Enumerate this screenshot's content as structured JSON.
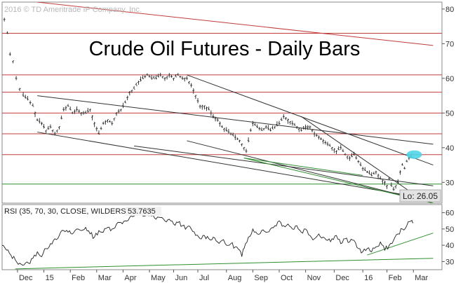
{
  "copyright": "2016 © TD Ameritrade IP Company, Inc.",
  "colors": {
    "price": "#222222",
    "resistance": "#c23b3b",
    "support": "#2f8f2f",
    "trendline": "#333333",
    "highlight": "#4fd6e8",
    "lo_box": "#e3e3e3"
  },
  "chart_data": [
    {
      "type": "line",
      "title": "Crude Oil Futures - Daily Bars",
      "ylim": [
        24,
        82
      ],
      "yticks": [
        30,
        40,
        50,
        60,
        70,
        80
      ],
      "ytick_labels": [
        "30",
        "40",
        "50",
        "60",
        "70",
        "80"
      ],
      "xtick_labels": [
        "Dec",
        "15",
        "Feb",
        "Mar",
        "Apr",
        "May",
        "Jun",
        "Jul",
        "Aug",
        "Sep",
        "Oct",
        "Nov",
        "Dec",
        "16",
        "Feb",
        "Mar"
      ],
      "xtick_pos": [
        0.035,
        0.095,
        0.155,
        0.215,
        0.275,
        0.335,
        0.39,
        0.445,
        0.51,
        0.57,
        0.63,
        0.69,
        0.755,
        0.82,
        0.875,
        0.935
      ],
      "x_range": [
        0,
        1
      ],
      "price": [
        [
          0.005,
          77
        ],
        [
          0.012,
          73
        ],
        [
          0.018,
          67
        ],
        [
          0.025,
          65
        ],
        [
          0.032,
          60
        ],
        [
          0.04,
          57
        ],
        [
          0.048,
          55
        ],
        [
          0.058,
          54
        ],
        [
          0.07,
          52
        ],
        [
          0.08,
          48
        ],
        [
          0.09,
          47
        ],
        [
          0.1,
          45
        ],
        [
          0.11,
          46
        ],
        [
          0.12,
          44
        ],
        [
          0.13,
          46
        ],
        [
          0.14,
          51
        ],
        [
          0.15,
          52
        ],
        [
          0.16,
          50
        ],
        [
          0.17,
          51
        ],
        [
          0.18,
          50
        ],
        [
          0.19,
          50
        ],
        [
          0.2,
          51
        ],
        [
          0.21,
          47
        ],
        [
          0.22,
          44
        ],
        [
          0.23,
          47
        ],
        [
          0.24,
          48
        ],
        [
          0.25,
          47
        ],
        [
          0.26,
          50
        ],
        [
          0.27,
          51
        ],
        [
          0.28,
          53
        ],
        [
          0.29,
          56
        ],
        [
          0.3,
          57
        ],
        [
          0.31,
          59
        ],
        [
          0.32,
          60
        ],
        [
          0.33,
          61
        ],
        [
          0.34,
          60
        ],
        [
          0.35,
          60
        ],
        [
          0.36,
          61
        ],
        [
          0.37,
          60
        ],
        [
          0.38,
          61
        ],
        [
          0.39,
          60
        ],
        [
          0.4,
          61
        ],
        [
          0.41,
          60
        ],
        [
          0.42,
          60
        ],
        [
          0.43,
          58
        ],
        [
          0.44,
          55
        ],
        [
          0.45,
          52
        ],
        [
          0.46,
          52
        ],
        [
          0.47,
          51
        ],
        [
          0.48,
          49
        ],
        [
          0.49,
          48
        ],
        [
          0.5,
          46
        ],
        [
          0.51,
          45
        ],
        [
          0.52,
          44
        ],
        [
          0.53,
          43
        ],
        [
          0.54,
          42
        ],
        [
          0.55,
          40
        ],
        [
          0.555,
          39
        ],
        [
          0.56,
          42
        ],
        [
          0.565,
          45
        ],
        [
          0.57,
          47
        ],
        [
          0.58,
          46
        ],
        [
          0.59,
          45
        ],
        [
          0.6,
          46
        ],
        [
          0.61,
          45
        ],
        [
          0.62,
          46
        ],
        [
          0.63,
          47
        ],
        [
          0.64,
          49
        ],
        [
          0.65,
          48
        ],
        [
          0.66,
          47
        ],
        [
          0.67,
          46
        ],
        [
          0.68,
          45
        ],
        [
          0.69,
          46
        ],
        [
          0.7,
          46
        ],
        [
          0.71,
          44
        ],
        [
          0.72,
          43
        ],
        [
          0.73,
          42
        ],
        [
          0.74,
          41
        ],
        [
          0.75,
          40
        ],
        [
          0.76,
          39
        ],
        [
          0.77,
          40
        ],
        [
          0.78,
          38
        ],
        [
          0.79,
          37
        ],
        [
          0.8,
          38
        ],
        [
          0.81,
          36
        ],
        [
          0.82,
          34
        ],
        [
          0.83,
          33
        ],
        [
          0.84,
          32
        ],
        [
          0.85,
          33
        ],
        [
          0.86,
          31
        ],
        [
          0.87,
          30
        ],
        [
          0.875,
          29
        ],
        [
          0.88,
          31
        ],
        [
          0.885,
          29
        ],
        [
          0.89,
          28
        ],
        [
          0.895,
          29
        ],
        [
          0.9,
          30
        ],
        [
          0.905,
          33
        ],
        [
          0.91,
          35
        ],
        [
          0.915,
          34
        ],
        [
          0.92,
          36
        ],
        [
          0.925,
          37
        ],
        [
          0.93,
          38
        ]
      ],
      "horizontal_resistance": [
        73,
        61,
        56,
        50,
        44,
        38
      ],
      "horizontal_support": [
        29.5
      ],
      "trendlines": [
        {
          "color": "resistance",
          "from": [
            0.08,
            82
          ],
          "to": [
            0.98,
            69.5
          ]
        },
        {
          "color": "trendline",
          "from": [
            0.08,
            55
          ],
          "to": [
            0.98,
            41
          ]
        },
        {
          "color": "trendline",
          "from": [
            0.08,
            44.5
          ],
          "to": [
            0.98,
            25
          ]
        },
        {
          "color": "trendline",
          "from": [
            0.42,
            61
          ],
          "to": [
            0.98,
            35
          ]
        },
        {
          "color": "trendline",
          "from": [
            0.42,
            42
          ],
          "to": [
            0.98,
            24
          ]
        },
        {
          "color": "trendline",
          "from": [
            0.68,
            49
          ],
          "to": [
            0.96,
            24.5
          ]
        },
        {
          "color": "trendline",
          "from": [
            0.3,
            40.5
          ],
          "to": [
            0.98,
            29
          ]
        },
        {
          "color": "support",
          "from": [
            0.55,
            37
          ],
          "to": [
            0.98,
            24
          ]
        },
        {
          "color": "support",
          "from": [
            0.55,
            37
          ],
          "to": [
            0.82,
            32
          ]
        }
      ],
      "highlight": {
        "x": 0.937,
        "y": 38
      },
      "lo_label": "Lo: 26.05"
    },
    {
      "type": "line",
      "label": "RSI (35, 70, 30, CLOSE, WILDERS)",
      "value_label": "53.7635",
      "ylim": [
        25,
        65
      ],
      "yticks": [
        30,
        40,
        50,
        60
      ],
      "ytick_labels": [
        "30",
        "40",
        "50",
        "60"
      ],
      "rsi": [
        [
          0.0,
          40
        ],
        [
          0.01,
          37
        ],
        [
          0.02,
          34
        ],
        [
          0.03,
          31
        ],
        [
          0.04,
          29
        ],
        [
          0.05,
          28
        ],
        [
          0.06,
          29
        ],
        [
          0.07,
          32
        ],
        [
          0.08,
          36
        ],
        [
          0.09,
          33
        ],
        [
          0.1,
          38
        ],
        [
          0.11,
          41
        ],
        [
          0.12,
          44
        ],
        [
          0.13,
          46
        ],
        [
          0.14,
          49
        ],
        [
          0.15,
          48
        ],
        [
          0.16,
          47
        ],
        [
          0.17,
          50
        ],
        [
          0.18,
          49
        ],
        [
          0.19,
          51
        ],
        [
          0.2,
          47
        ],
        [
          0.21,
          45
        ],
        [
          0.22,
          49
        ],
        [
          0.23,
          48
        ],
        [
          0.24,
          51
        ],
        [
          0.25,
          50
        ],
        [
          0.26,
          53
        ],
        [
          0.27,
          54
        ],
        [
          0.28,
          55
        ],
        [
          0.29,
          57
        ],
        [
          0.3,
          58
        ],
        [
          0.31,
          59
        ],
        [
          0.32,
          58
        ],
        [
          0.33,
          59
        ],
        [
          0.34,
          58
        ],
        [
          0.35,
          56
        ],
        [
          0.36,
          57
        ],
        [
          0.37,
          55
        ],
        [
          0.38,
          56
        ],
        [
          0.39,
          53
        ],
        [
          0.4,
          54
        ],
        [
          0.41,
          52
        ],
        [
          0.42,
          51
        ],
        [
          0.43,
          50
        ],
        [
          0.44,
          46
        ],
        [
          0.45,
          44
        ],
        [
          0.46,
          46
        ],
        [
          0.47,
          44
        ],
        [
          0.48,
          45
        ],
        [
          0.49,
          42
        ],
        [
          0.5,
          43
        ],
        [
          0.51,
          40
        ],
        [
          0.52,
          41
        ],
        [
          0.53,
          39
        ],
        [
          0.54,
          37
        ],
        [
          0.545,
          33
        ],
        [
          0.55,
          38
        ],
        [
          0.56,
          45
        ],
        [
          0.57,
          50
        ],
        [
          0.58,
          47
        ],
        [
          0.59,
          49
        ],
        [
          0.6,
          48
        ],
        [
          0.61,
          50
        ],
        [
          0.62,
          52
        ],
        [
          0.63,
          55
        ],
        [
          0.64,
          52
        ],
        [
          0.65,
          53
        ],
        [
          0.66,
          50
        ],
        [
          0.67,
          52
        ],
        [
          0.68,
          48
        ],
        [
          0.69,
          50
        ],
        [
          0.7,
          46
        ],
        [
          0.71,
          44
        ],
        [
          0.72,
          47
        ],
        [
          0.73,
          45
        ],
        [
          0.74,
          43
        ],
        [
          0.75,
          44
        ],
        [
          0.76,
          46
        ],
        [
          0.77,
          41
        ],
        [
          0.78,
          44
        ],
        [
          0.79,
          42
        ],
        [
          0.8,
          43
        ],
        [
          0.81,
          38
        ],
        [
          0.82,
          36
        ],
        [
          0.83,
          38
        ],
        [
          0.84,
          36
        ],
        [
          0.85,
          39
        ],
        [
          0.86,
          42
        ],
        [
          0.87,
          37
        ],
        [
          0.88,
          40
        ],
        [
          0.89,
          43
        ],
        [
          0.9,
          47
        ],
        [
          0.91,
          50
        ],
        [
          0.92,
          52
        ],
        [
          0.93,
          55
        ],
        [
          0.935,
          53.8
        ]
      ],
      "trendlines": [
        {
          "color": "support",
          "from": [
            0.03,
            25.5
          ],
          "to": [
            0.98,
            32
          ]
        },
        {
          "color": "support",
          "from": [
            0.83,
            34
          ],
          "to": [
            0.98,
            47.5
          ]
        }
      ]
    }
  ]
}
